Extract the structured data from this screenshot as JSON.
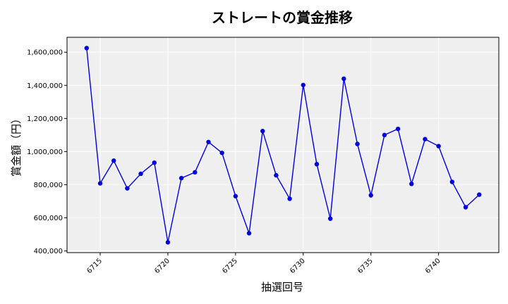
{
  "chart_data": {
    "type": "line",
    "title": "ストレートの賞金推移",
    "xlabel": "抽選回号",
    "ylabel": "賞金額（円）",
    "x": [
      6714,
      6715,
      6716,
      6717,
      6718,
      6719,
      6720,
      6721,
      6722,
      6723,
      6724,
      6725,
      6726,
      6727,
      6728,
      6729,
      6730,
      6731,
      6732,
      6733,
      6734,
      6735,
      6736,
      6737,
      6738,
      6739,
      6740,
      6741,
      6742,
      6743
    ],
    "series": [
      {
        "values": [
          1625000,
          808000,
          945000,
          778000,
          866000,
          933000,
          452000,
          840000,
          875000,
          1058000,
          992000,
          731000,
          507000,
          1124000,
          857000,
          715000,
          1402000,
          924000,
          595000,
          1440000,
          1046000,
          736000,
          1100000,
          1137000,
          805000,
          1075000,
          1033000,
          817000,
          664000,
          740000
        ],
        "color": "#0000dd"
      }
    ],
    "xlim": [
      6712.55,
      6744.45
    ],
    "ylim": [
      390000,
      1690000
    ],
    "xticks": [
      6715,
      6720,
      6725,
      6730,
      6735,
      6740
    ],
    "yticks": [
      400000,
      600000,
      800000,
      1000000,
      1200000,
      1400000,
      1600000
    ],
    "xtick_labels": [
      "6715",
      "6720",
      "6725",
      "6730",
      "6735",
      "6740"
    ],
    "ytick_labels": [
      "400,000",
      "600,000",
      "800,000",
      "1,000,000",
      "1,200,000",
      "1,400,000",
      "1,600,000"
    ],
    "grid": true
  }
}
